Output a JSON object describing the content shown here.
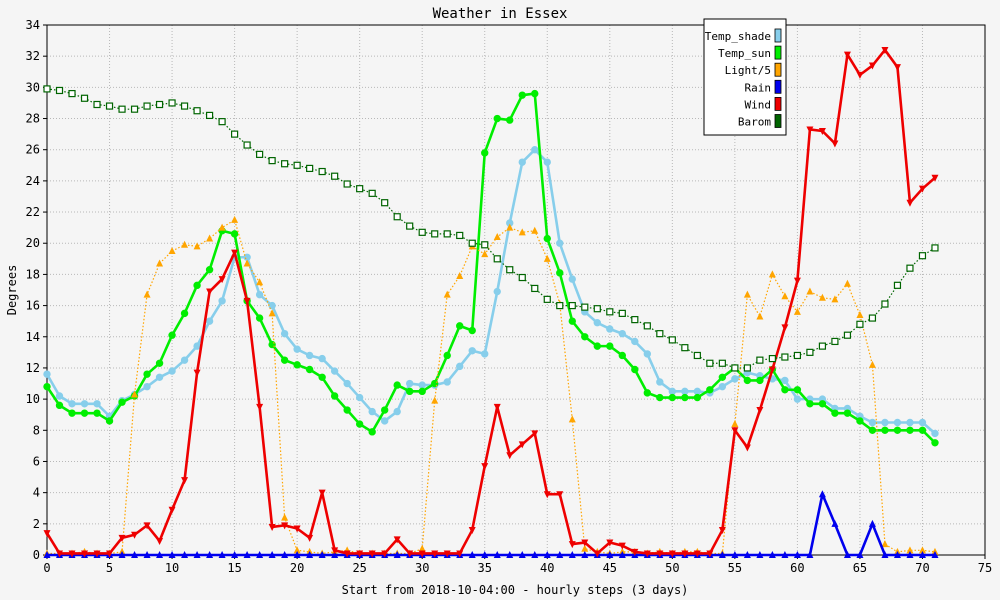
{
  "chart_data": {
    "type": "line",
    "title": "Weather in Essex",
    "xlabel": "Start from 2018-10-04:00 - hourly steps (3 days)",
    "ylabel": "Degrees",
    "xlim": [
      0,
      75
    ],
    "ylim": [
      0,
      34
    ],
    "xticks": [
      0,
      5,
      10,
      15,
      20,
      25,
      30,
      35,
      40,
      45,
      50,
      55,
      60,
      65,
      70,
      75
    ],
    "yticks": [
      0,
      2,
      4,
      6,
      8,
      10,
      12,
      14,
      16,
      18,
      20,
      22,
      24,
      26,
      28,
      30,
      32,
      34
    ],
    "grid": true,
    "legend_position": "top-right",
    "background_color": "#f5f5f5",
    "series": [
      {
        "name": "Temp_shade",
        "color": "#87ceeb",
        "style": "solid",
        "marker": "circle",
        "values": [
          11.6,
          10.2,
          9.7,
          9.7,
          9.7,
          8.9,
          9.9,
          10.3,
          10.8,
          11.4,
          11.8,
          12.5,
          13.4,
          15.0,
          16.3,
          19.1,
          19.1,
          16.7,
          16.0,
          14.2,
          13.2,
          12.8,
          12.6,
          11.8,
          11.0,
          10.1,
          9.2,
          8.6,
          9.2,
          11.0,
          10.9,
          10.9,
          11.1,
          12.1,
          13.1,
          12.9,
          16.9,
          21.3,
          25.2,
          26.0,
          25.2,
          20.0,
          17.7,
          15.6,
          14.9,
          14.5,
          14.2,
          13.7,
          12.9,
          11.1,
          10.5,
          10.5,
          10.5,
          10.4,
          10.8,
          11.3,
          11.7,
          11.5,
          11.3,
          11.2,
          10.0,
          10.0,
          10.0,
          9.4,
          9.4,
          8.9,
          8.5,
          8.5,
          8.5,
          8.5,
          8.5,
          7.8
        ]
      },
      {
        "name": "Temp_sun",
        "color": "#00ee00",
        "style": "solid",
        "marker": "circle",
        "values": [
          10.8,
          9.6,
          9.1,
          9.1,
          9.1,
          8.6,
          9.8,
          10.2,
          11.6,
          12.3,
          14.1,
          15.5,
          17.3,
          18.3,
          20.8,
          20.6,
          16.3,
          15.2,
          13.5,
          12.5,
          12.2,
          11.9,
          11.4,
          10.2,
          9.3,
          8.4,
          7.9,
          9.3,
          10.9,
          10.5,
          10.5,
          11.0,
          12.8,
          14.7,
          14.4,
          25.8,
          28.0,
          27.9,
          29.5,
          29.6,
          20.3,
          18.1,
          15.0,
          14.0,
          13.4,
          13.4,
          12.8,
          11.9,
          10.4,
          10.1,
          10.1,
          10.1,
          10.1,
          10.6,
          11.4,
          12.0,
          11.2,
          11.2,
          11.9,
          10.6,
          10.6,
          9.7,
          9.7,
          9.1,
          9.1,
          8.6,
          8.0,
          8.0,
          8.0,
          8.0,
          8.0,
          7.2
        ]
      },
      {
        "name": "Light/5",
        "color": "#ffa500",
        "style": "dotted",
        "marker": "triangle-up",
        "values": [
          0.1,
          0.1,
          0.1,
          0.2,
          0.1,
          0.1,
          0.2,
          10.3,
          16.7,
          18.7,
          19.5,
          19.9,
          19.8,
          20.3,
          21.0,
          21.5,
          18.7,
          17.5,
          15.5,
          2.4,
          0.3,
          0.2,
          0.1,
          0.2,
          0.3,
          0.1,
          0.1,
          0.1,
          0.1,
          0.1,
          0.4,
          9.9,
          16.7,
          17.9,
          19.8,
          19.3,
          20.4,
          21.0,
          20.7,
          20.8,
          19.0,
          16.1,
          8.7,
          0.4,
          0.2,
          0.1,
          0.2,
          0.2,
          0.1,
          0.2,
          0.1,
          0.2,
          0.2,
          0.1,
          0.1,
          8.4,
          16.7,
          15.3,
          18.0,
          16.6,
          15.6,
          16.9,
          16.5,
          16.4,
          17.4,
          15.4,
          12.2,
          0.7,
          0.2,
          0.3,
          0.3,
          0.2
        ]
      },
      {
        "name": "Rain",
        "color": "#0000ee",
        "style": "solid",
        "marker": "triangle-up",
        "values": [
          0,
          0,
          0,
          0,
          0,
          0,
          0,
          0,
          0,
          0,
          0,
          0,
          0,
          0,
          0,
          0,
          0,
          0,
          0,
          0,
          0,
          0,
          0,
          0,
          0,
          0,
          0,
          0,
          0,
          0,
          0,
          0,
          0,
          0,
          0,
          0,
          0,
          0,
          0,
          0,
          0,
          0,
          0,
          0,
          0,
          0,
          0,
          0,
          0,
          0,
          0,
          0,
          0,
          0,
          0,
          0,
          0,
          0,
          0,
          0,
          0,
          0,
          3.9,
          2.0,
          0,
          0,
          2.0,
          0,
          0,
          0,
          0,
          0
        ]
      },
      {
        "name": "Wind",
        "color": "#ee0000",
        "style": "solid",
        "marker": "triangle-down",
        "values": [
          1.4,
          0.1,
          0.1,
          0.1,
          0.1,
          0.1,
          1.1,
          1.3,
          1.9,
          0.9,
          2.9,
          4.8,
          11.7,
          16.9,
          17.7,
          19.4,
          16.3,
          9.5,
          1.8,
          1.9,
          1.7,
          1.1,
          4.0,
          0.3,
          0.1,
          0.1,
          0.1,
          0.1,
          1.0,
          0.1,
          0.1,
          0.1,
          0.1,
          0.1,
          1.6,
          5.7,
          9.5,
          6.4,
          7.1,
          7.8,
          3.9,
          3.9,
          0.7,
          0.8,
          0.1,
          0.8,
          0.6,
          0.2,
          0.1,
          0.1,
          0.1,
          0.1,
          0.1,
          0.1,
          1.6,
          8.0,
          6.9,
          9.3,
          11.9,
          14.6,
          17.6,
          27.3,
          27.2,
          26.4,
          32.1,
          30.8,
          31.4,
          32.4,
          31.3,
          22.6,
          23.5,
          24.2
        ]
      },
      {
        "name": "Barom",
        "color": "#006400",
        "style": "dotted",
        "marker": "square",
        "values": [
          29.9,
          29.8,
          29.6,
          29.3,
          28.9,
          28.8,
          28.6,
          28.6,
          28.8,
          28.9,
          29.0,
          28.8,
          28.5,
          28.2,
          27.8,
          27.0,
          26.3,
          25.7,
          25.3,
          25.1,
          25.0,
          24.8,
          24.6,
          24.3,
          23.8,
          23.5,
          23.2,
          22.6,
          21.7,
          21.1,
          20.7,
          20.6,
          20.6,
          20.5,
          20.0,
          19.9,
          19.0,
          18.3,
          17.8,
          17.1,
          16.4,
          16.0,
          16.0,
          15.9,
          15.8,
          15.6,
          15.5,
          15.1,
          14.7,
          14.2,
          13.8,
          13.3,
          12.8,
          12.3,
          12.3,
          12.0,
          12.0,
          12.5,
          12.6,
          12.7,
          12.8,
          13.0,
          13.4,
          13.7,
          14.1,
          14.8,
          15.2,
          16.1,
          17.3,
          18.4,
          19.2,
          19.7
        ]
      }
    ]
  }
}
